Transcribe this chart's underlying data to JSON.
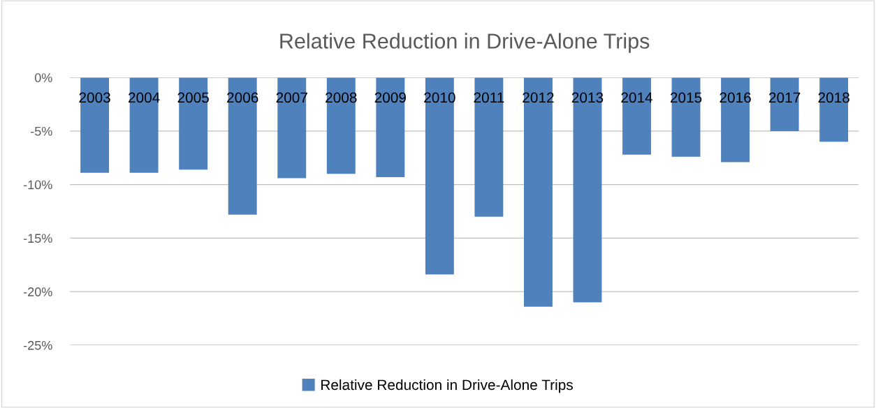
{
  "chart_data": {
    "type": "bar",
    "title": "Relative Reduction in Drive-Alone Trips",
    "categories": [
      "2003",
      "2004",
      "2005",
      "2006",
      "2007",
      "2008",
      "2009",
      "2010",
      "2011",
      "2012",
      "2013",
      "2014",
      "2015",
      "2016",
      "2017",
      "2018"
    ],
    "series": [
      {
        "name": "Relative Reduction in Drive-Alone Trips",
        "color": "#4f81bd",
        "values": [
          -8.9,
          -8.9,
          -8.6,
          -12.8,
          -9.4,
          -9.0,
          -9.3,
          -18.4,
          -13.0,
          -21.4,
          -21.0,
          -7.2,
          -7.4,
          -7.9,
          -5.0,
          -6.0
        ]
      }
    ],
    "ylim": [
      -25,
      0
    ],
    "yticks": [
      {
        "value": 0,
        "label": "0%"
      },
      {
        "value": -5,
        "label": "-5%"
      },
      {
        "value": -10,
        "label": "-10%"
      },
      {
        "value": -15,
        "label": "-15%"
      },
      {
        "value": -20,
        "label": "-20%"
      },
      {
        "value": -25,
        "label": "-25%"
      }
    ],
    "grid": "y",
    "legend": "bottom"
  }
}
